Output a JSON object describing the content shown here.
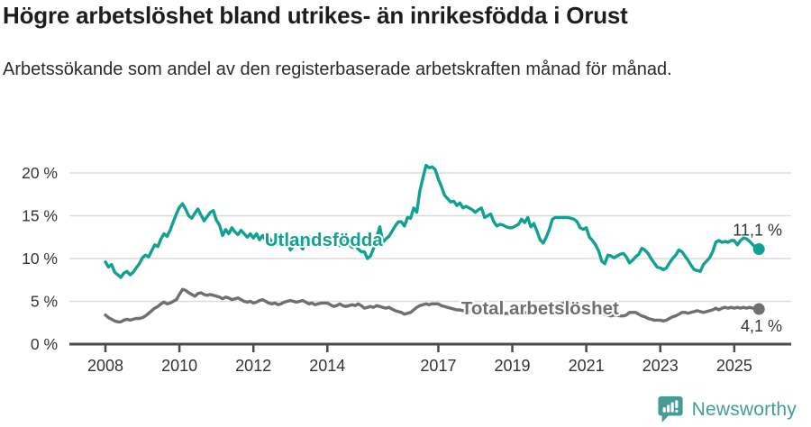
{
  "header": {
    "title": "Högre arbetslöshet bland utrikes- än inrikesfödda i Orust",
    "subtitle": "Arbetssökande som andel av den registerbaserade arbetskraften månad för månad."
  },
  "footer": {
    "brand": "Newsworthy",
    "brand_icon": "newsworthy-bubble-barchart-icon"
  },
  "colors": {
    "series_foreign_born": "#12a191",
    "series_total": "#6f6f6f",
    "grid": "#dcdcdc",
    "axis": "#4a4a4a",
    "axis_text": "#333333",
    "title_text": "#1d1d1d",
    "logo_teal": "#459c96"
  },
  "chart_data": {
    "type": "line",
    "title": "Högre arbetslöshet bland utrikes- än inrikesfödda i Orust",
    "subtitle": "Arbetssökande som andel av den registerbaserade arbetskraften månad för månad.",
    "x_unit": "month",
    "x_start_year": 2008,
    "x_end": "2025-09",
    "x_tick_years": [
      2008,
      2010,
      2012,
      2014,
      2017,
      2019,
      2021,
      2023,
      2025
    ],
    "x_tick_labels": [
      "2008",
      "2010",
      "2012",
      "2014",
      "2017",
      "2019",
      "2021",
      "2023",
      "2025"
    ],
    "y_ticks": [
      0,
      5,
      10,
      15,
      20
    ],
    "y_tick_labels": [
      "0 %",
      "5 %",
      "10 %",
      "15 %",
      "20 %"
    ],
    "ylim": [
      0,
      21.8
    ],
    "grid": "horizontal",
    "legend_position": "inline-labels",
    "series": [
      {
        "name": "Utlandsfödda",
        "color": "#12a191",
        "end_label": "11,1 %",
        "end_value": 11.1,
        "label_anchor": {
          "year": 2013.9,
          "value": 12.2
        },
        "values": [
          9.6,
          9.0,
          9.3,
          8.4,
          8.1,
          7.8,
          8.3,
          8.5,
          8.1,
          8.4,
          8.9,
          9.4,
          10.1,
          10.4,
          10.2,
          10.9,
          11.6,
          11.4,
          12.3,
          12.9,
          12.6,
          13.3,
          14.3,
          15.2,
          16.0,
          16.4,
          15.8,
          15.0,
          14.7,
          15.3,
          15.8,
          15.1,
          14.4,
          14.9,
          15.4,
          15.6,
          14.5,
          13.9,
          12.7,
          13.4,
          12.9,
          13.6,
          13.1,
          12.8,
          13.3,
          12.9,
          12.5,
          12.9,
          12.4,
          12.9,
          12.2,
          12.7,
          12.1,
          12.5,
          11.9,
          12.3,
          11.7,
          12.1,
          11.5,
          11.9,
          11.0,
          11.5,
          12.0,
          11.6,
          11.1,
          12.2,
          12.6,
          12.1,
          11.6,
          11.9,
          12.3,
          11.8,
          11.4,
          11.9,
          12.4,
          12.0,
          11.5,
          11.8,
          12.2,
          11.7,
          11.3,
          11.6,
          11.1,
          10.8,
          10.8,
          10.0,
          10.3,
          11.2,
          12.5,
          13.7,
          11.9,
          12.3,
          12.6,
          13.2,
          13.8,
          14.3,
          14.3,
          13.8,
          14.8,
          14.7,
          15.9,
          15.4,
          17.9,
          19.4,
          20.9,
          20.6,
          20.7,
          20.4,
          19.3,
          18.4,
          17.4,
          17.0,
          16.6,
          16.7,
          16.2,
          16.5,
          15.9,
          16.1,
          15.9,
          15.7,
          15.4,
          15.7,
          15.9,
          14.8,
          15.0,
          15.2,
          14.3,
          13.8,
          14.0,
          13.9,
          13.7,
          13.6,
          13.6,
          13.8,
          14.0,
          14.6,
          14.2,
          14.8,
          13.7,
          14.1,
          13.2,
          12.2,
          11.8,
          12.5,
          13.4,
          14.6,
          14.8,
          14.8,
          14.8,
          14.8,
          14.8,
          14.7,
          14.6,
          14.3,
          13.6,
          13.4,
          13.6,
          12.5,
          12.1,
          11.6,
          10.9,
          9.7,
          9.4,
          10.4,
          10.3,
          10.1,
          10.3,
          10.5,
          10.6,
          10.2,
          9.5,
          9.8,
          10.2,
          10.5,
          11.2,
          11.0,
          10.6,
          10.0,
          9.5,
          9.0,
          8.9,
          8.7,
          8.9,
          9.5,
          10.0,
          10.4,
          11.0,
          10.8,
          10.3,
          9.8,
          9.2,
          8.7,
          8.6,
          8.5,
          9.3,
          9.7,
          10.1,
          10.8,
          11.9,
          12.1,
          11.9,
          12.0,
          11.9,
          12.1,
          12.1,
          11.6,
          12.1,
          12.4,
          12.3,
          12.0,
          11.6,
          11.3,
          11.1
        ]
      },
      {
        "name": "Total arbetslöshet",
        "color": "#6f6f6f",
        "end_label": "4,1 %",
        "end_value": 4.1,
        "label_anchor": {
          "year": 2019.75,
          "value": 4.2
        },
        "values": [
          3.4,
          3.1,
          2.9,
          2.7,
          2.6,
          2.6,
          2.8,
          2.9,
          2.8,
          2.9,
          3.0,
          3.0,
          3.1,
          3.3,
          3.6,
          3.9,
          4.2,
          4.4,
          4.7,
          4.9,
          4.7,
          4.8,
          5.0,
          5.2,
          5.8,
          6.4,
          6.3,
          6.0,
          5.8,
          5.6,
          5.9,
          6.0,
          5.8,
          5.7,
          5.8,
          5.7,
          5.6,
          5.5,
          5.3,
          5.5,
          5.4,
          5.2,
          5.3,
          5.4,
          5.2,
          5.0,
          4.9,
          5.0,
          4.8,
          4.9,
          5.1,
          5.2,
          5.0,
          4.8,
          4.7,
          4.8,
          4.6,
          4.7,
          4.9,
          5.0,
          5.1,
          5.0,
          4.9,
          5.0,
          5.1,
          4.9,
          4.7,
          4.8,
          4.6,
          4.7,
          4.8,
          4.8,
          4.8,
          4.6,
          4.4,
          4.5,
          4.7,
          4.5,
          4.4,
          4.5,
          4.6,
          4.5,
          4.7,
          4.5,
          4.2,
          4.3,
          4.4,
          4.3,
          4.5,
          4.4,
          4.3,
          4.2,
          4.3,
          4.1,
          3.9,
          3.8,
          3.7,
          3.5,
          3.6,
          3.7,
          4.0,
          4.3,
          4.5,
          4.6,
          4.7,
          4.6,
          4.7,
          4.7,
          4.7,
          4.5,
          4.4,
          4.3,
          4.2,
          4.1,
          4.0,
          4.0,
          3.9,
          4.0,
          3.9,
          3.9,
          3.8,
          3.9,
          3.8,
          3.7,
          3.8,
          3.7,
          3.6,
          3.7,
          3.6,
          3.5,
          3.6,
          3.6,
          3.5,
          3.6,
          3.5,
          3.6,
          3.7,
          3.6,
          3.7,
          3.8,
          3.7,
          3.8,
          3.9,
          4.0,
          4.1,
          4.2,
          4.4,
          4.6,
          4.7,
          4.8,
          4.8,
          4.7,
          4.6,
          4.5,
          4.4,
          4.3,
          4.2,
          4.1,
          4.0,
          3.9,
          3.7,
          3.6,
          3.5,
          3.4,
          3.3,
          3.4,
          3.4,
          3.3,
          3.3,
          3.4,
          3.7,
          3.7,
          3.7,
          3.5,
          3.3,
          3.2,
          3.0,
          2.9,
          2.8,
          2.8,
          2.8,
          2.7,
          2.8,
          3.0,
          3.2,
          3.3,
          3.5,
          3.7,
          3.7,
          3.6,
          3.7,
          3.8,
          3.9,
          3.8,
          3.7,
          3.8,
          3.9,
          4.0,
          4.2,
          4.0,
          4.2,
          4.3,
          4.2,
          4.3,
          4.2,
          4.3,
          4.2,
          4.3,
          4.2,
          4.3,
          4.2,
          4.2,
          4.1
        ]
      }
    ]
  }
}
